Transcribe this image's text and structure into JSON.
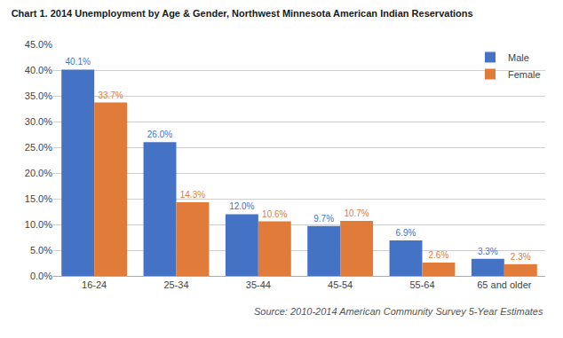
{
  "chart_data": {
    "type": "bar",
    "title": "Chart 1. 2014 Unemployment by Age & Gender, Northwest Minnesota American Indian Reservations",
    "categories": [
      "16-24",
      "25-34",
      "35-44",
      "45-54",
      "55-64",
      "65 and older"
    ],
    "series": [
      {
        "name": "Male",
        "color": "#4472C4",
        "values": [
          40.1,
          26.0,
          12.0,
          9.7,
          6.9,
          3.3
        ],
        "value_labels": [
          "40.1%",
          "26.0%",
          "12.0%",
          "9.7%",
          "6.9%",
          "3.3%"
        ]
      },
      {
        "name": "Female",
        "color": "#E07B39",
        "values": [
          33.7,
          14.3,
          10.6,
          10.7,
          2.6,
          2.3
        ],
        "value_labels": [
          "33.7%",
          "14.3%",
          "10.6%",
          "10.7%",
          "2.6%",
          "2.3%"
        ]
      }
    ],
    "ylim": [
      0,
      45
    ],
    "yticks": [
      {
        "value": 0,
        "label": "0.0%"
      },
      {
        "value": 5,
        "label": "5.0%"
      },
      {
        "value": 10,
        "label": "10.0%"
      },
      {
        "value": 15,
        "label": "15.0%"
      },
      {
        "value": 20,
        "label": "20.0%"
      },
      {
        "value": 25,
        "label": "25.0%"
      },
      {
        "value": 30,
        "label": "30.0%"
      },
      {
        "value": 35,
        "label": "35.0%"
      },
      {
        "value": 40,
        "label": "40.0%"
      },
      {
        "value": 45,
        "label": "45.0%"
      }
    ],
    "annotations": [
      "Source: 2010-2014 American Community Survey 5-Year Estimates"
    ],
    "grid": true,
    "legend": "upper right",
    "data_labels": true
  }
}
